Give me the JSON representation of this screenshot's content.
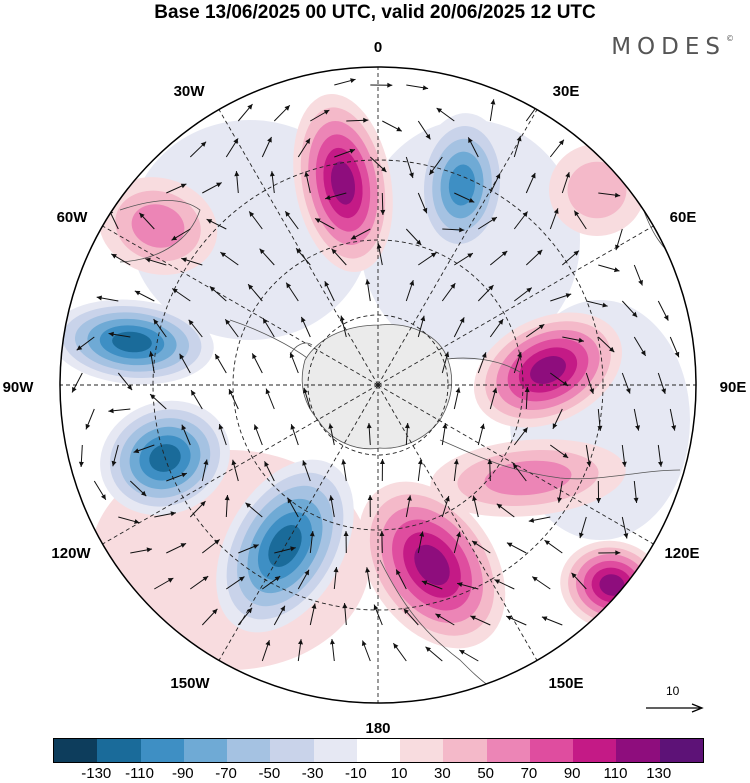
{
  "title": "Base 13/06/2025 00 UTC, valid 20/06/2025 12 UTC",
  "logo": "MODES",
  "logo_mark": "©",
  "longitude_labels": [
    "0",
    "30E",
    "60E",
    "90E",
    "120E",
    "150E",
    "180",
    "150W",
    "120W",
    "90W",
    "60W",
    "30W"
  ],
  "vector_key": {
    "value": "10"
  },
  "colorbar": {
    "colors": [
      "#0d3d5c",
      "#1a6b9a",
      "#3e8fc4",
      "#6faad5",
      "#a5c2e2",
      "#c9d3ea",
      "#e6e8f3",
      "#ffffff",
      "#f8dcdf",
      "#f4b9c9",
      "#ec85b6",
      "#df4d9f",
      "#c41a86",
      "#8e0d7d",
      "#5d1277"
    ],
    "labels": [
      "-130",
      "-110",
      "-90",
      "-70",
      "-50",
      "-30",
      "-10",
      "10",
      "30",
      "50",
      "70",
      "90",
      "110",
      "130"
    ]
  },
  "anomalies": [
    {
      "sign": "+",
      "peak": 110
    },
    {
      "sign": "-",
      "peak": -90
    },
    {
      "sign": "+",
      "peak": 50
    },
    {
      "sign": "+",
      "peak": 30
    },
    {
      "sign": "-",
      "peak": -110
    },
    {
      "sign": "+",
      "peak": 110
    },
    {
      "sign": "-",
      "peak": -110
    },
    {
      "sign": "+",
      "peak": 50
    },
    {
      "sign": "+",
      "peak": 110
    },
    {
      "sign": "-",
      "peak": -110
    },
    {
      "sign": "+",
      "peak": 110
    }
  ],
  "colors": {
    "background": "#ffffff",
    "antarctica": "#ebebeb",
    "coast": "#555555"
  }
}
